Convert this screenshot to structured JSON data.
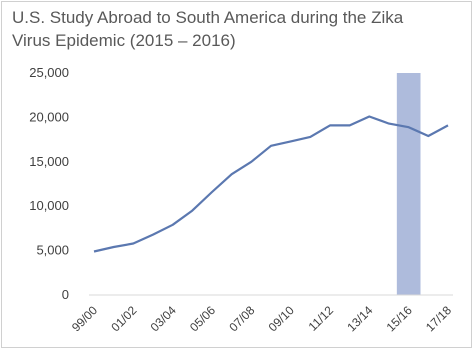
{
  "chart_data": {
    "type": "line",
    "title": "U.S. Study Abroad to South America during the Zika Virus Epidemic (2015 – 2016)",
    "title_lines": [
      "U.S. Study Abroad to South America during the Zika",
      "Virus Epidemic (2015 – 2016)"
    ],
    "xlabel": "",
    "ylabel": "",
    "x": [
      "99/00",
      "00/01",
      "01/02",
      "02/03",
      "03/04",
      "04/05",
      "05/06",
      "06/07",
      "07/08",
      "08/09",
      "09/10",
      "10/11",
      "11/12",
      "12/13",
      "13/14",
      "14/15",
      "15/16",
      "16/17",
      "17/18"
    ],
    "x_tick_labels": [
      "99/00",
      "01/02",
      "03/04",
      "05/06",
      "07/08",
      "09/10",
      "11/12",
      "13/14",
      "15/16",
      "17/18"
    ],
    "series": [
      {
        "values": [
          4900,
          5400,
          5800,
          6800,
          7900,
          9500,
          11600,
          13600,
          15000,
          16800,
          17300,
          17800,
          19100,
          19100,
          20100,
          19300,
          18900,
          17900,
          19100
        ]
      }
    ],
    "ylim": [
      0,
      25000
    ],
    "y_ticks": [
      0,
      5000,
      10000,
      15000,
      20000,
      25000
    ],
    "y_tick_labels": [
      "0",
      "5,000",
      "10,000",
      "15,000",
      "20,000",
      "25,000"
    ],
    "highlight_range": [
      "14/15",
      "16/17"
    ],
    "grid": false,
    "legend": "none",
    "colors": {
      "line": "#5b78b0",
      "highlight": "#aebbdc",
      "axis": "#d9d9d9"
    }
  }
}
